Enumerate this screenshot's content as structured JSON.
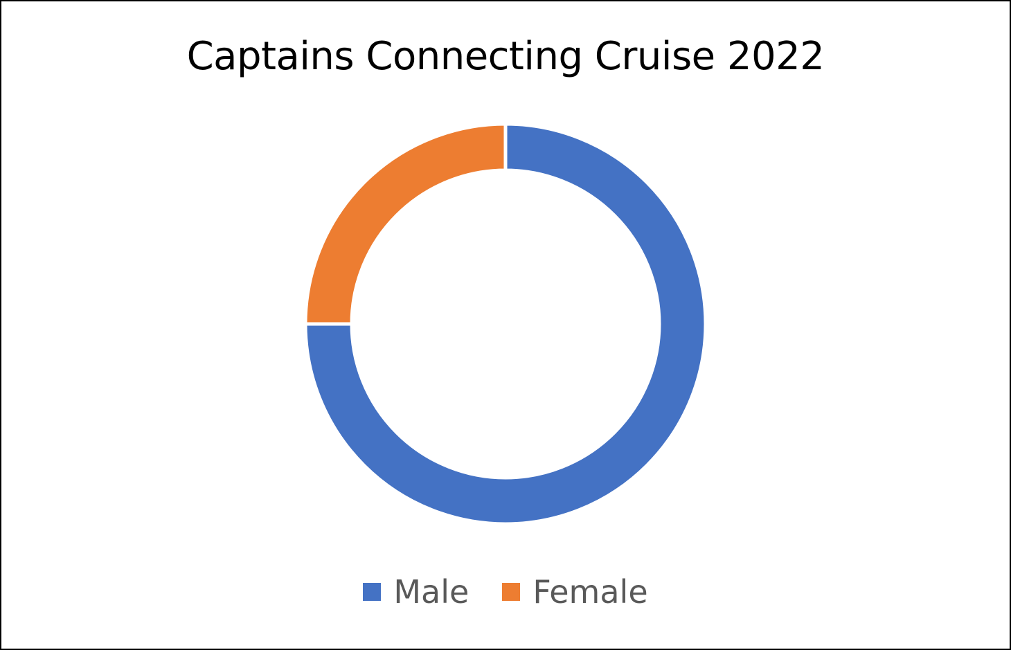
{
  "chart_data": {
    "type": "pie",
    "donut": true,
    "title": "Captains Connecting Cruise 2022",
    "categories": [
      "Male",
      "Female"
    ],
    "values": [
      75,
      25
    ],
    "colors": [
      "#4472C4",
      "#ED7D31"
    ],
    "legend": "bottom"
  }
}
